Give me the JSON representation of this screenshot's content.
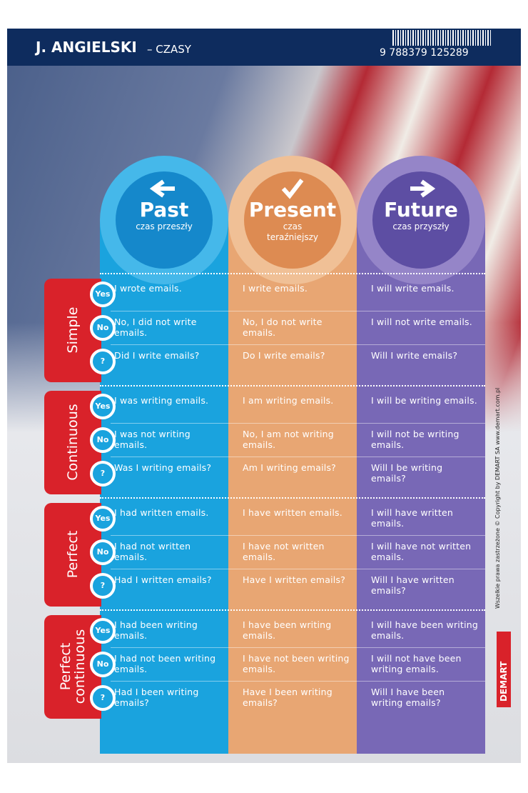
{
  "header": {
    "title": "J. ANGIELSKI",
    "subtitle": "– CZASY",
    "barcode": "9 788379 125289"
  },
  "columns": [
    {
      "name": "Past",
      "label": "czas przeszły"
    },
    {
      "name": "Present",
      "label": "czas teraźniejszy"
    },
    {
      "name": "Future",
      "label": "czas przyszły"
    }
  ],
  "row_labels": [
    "Yes",
    "No",
    "?"
  ],
  "groups": [
    {
      "name": "Simple",
      "rows": [
        [
          "I wrote emails.",
          "I write emails.",
          "I will write emails."
        ],
        [
          "No, I did not write emails.",
          "No, I do not write emails.",
          "I will not write emails."
        ],
        [
          "Did I write emails?",
          "Do I write emails?",
          "Will I write emails?"
        ]
      ]
    },
    {
      "name": "Continuous",
      "rows": [
        [
          "I was writing emails.",
          "I am writing emails.",
          "I will be writing emails."
        ],
        [
          "I was not writing emails.",
          "No, I am not writing emails.",
          "I will not be writing emails."
        ],
        [
          "Was I writing emails?",
          "Am I writing emails?",
          "Will I be writing emails?"
        ]
      ]
    },
    {
      "name": "Perfect",
      "rows": [
        [
          "I had written emails.",
          "I have written emails.",
          "I will have written emails."
        ],
        [
          "I had not written emails.",
          "I have not written emails.",
          "I will have not written emails."
        ],
        [
          "Had I written emails?",
          "Have I written emails?",
          "Will I have written emails?"
        ]
      ]
    },
    {
      "name": "Perfect continuous",
      "rows": [
        [
          "I had been writing emails.",
          "I have been writing emails.",
          "I will have been writing emails."
        ],
        [
          "I had not been writing emails.",
          "I have not been writing emails.",
          "I will not have been writing emails."
        ],
        [
          "Had I been writing emails?",
          "Have I been writing emails?",
          "Will I have been writing emails?"
        ]
      ]
    }
  ],
  "footer": {
    "copyright": "Wszelkie prawa zastrzeżone © Copyright by DEMART SA www.demart.com.pl",
    "logo": "DEMART"
  }
}
